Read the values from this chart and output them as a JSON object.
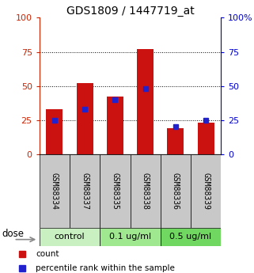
{
  "title": "GDS1809 / 1447719_at",
  "samples": [
    "GSM88334",
    "GSM88337",
    "GSM88335",
    "GSM88338",
    "GSM88336",
    "GSM88339"
  ],
  "red_values": [
    33,
    52,
    42,
    77,
    19,
    23
  ],
  "blue_values": [
    25,
    33,
    40,
    48,
    20,
    25
  ],
  "groups": [
    {
      "label": "control",
      "indices": [
        0,
        1
      ],
      "color": "#c8f0c0"
    },
    {
      "label": "0.1 ug/ml",
      "indices": [
        2,
        3
      ],
      "color": "#a0e890"
    },
    {
      "label": "0.5 ug/ml",
      "indices": [
        4,
        5
      ],
      "color": "#70d860"
    }
  ],
  "ylim": [
    0,
    100
  ],
  "bar_color": "#cc1111",
  "blue_color": "#2222cc",
  "left_axis_color": "#cc2200",
  "right_axis_color": "#0000cc",
  "bar_width": 0.55,
  "dose_label": "dose",
  "legend_count": "count",
  "legend_pct": "percentile rank within the sample",
  "label_area_color": "#c8c8c8",
  "fig_width": 3.21,
  "fig_height": 3.45,
  "dpi": 100
}
